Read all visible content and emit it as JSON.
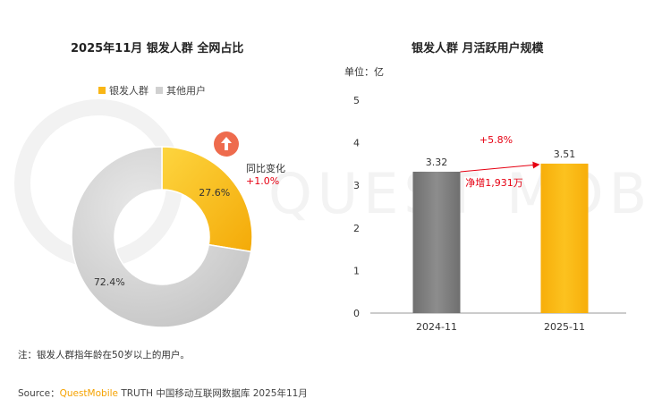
{
  "colors": {
    "primary": "#f9b616",
    "primary_light": "#fcd34a",
    "other": "#d0d0d0",
    "bar2024": "#7a7a7a",
    "accent_red": "#e60012",
    "arrow_badge": "#ee6b4d"
  },
  "left_chart": {
    "title": "2025年11月 银发人群 全网占比",
    "legend": [
      {
        "label": "银发人群",
        "color": "#f9b616"
      },
      {
        "label": "其他用户",
        "color": "#d0d0d0"
      }
    ],
    "change_label": "同比变化",
    "change_value": "+1.0%",
    "badge_icon": "up-arrow-icon"
  },
  "right_chart": {
    "title": "银发人群 月活跃用户规模",
    "unit_label": "单位：亿",
    "growth_label": "+5.8%",
    "increase_label": "净增1,931万"
  },
  "chart_data": [
    {
      "type": "pie",
      "title": "2025年11月 银发人群 全网占比",
      "categories": [
        "银发人群",
        "其他用户"
      ],
      "values": [
        27.6,
        72.4
      ],
      "labels": [
        "27.6%",
        "72.4%"
      ],
      "legend": "top"
    },
    {
      "type": "bar",
      "title": "银发人群 月活跃用户规模",
      "categories": [
        "2024-11",
        "2025-11"
      ],
      "values": [
        3.32,
        3.51
      ],
      "value_labels": [
        "3.32",
        "3.51"
      ],
      "ylabel": "单位：亿",
      "ylim": [
        0,
        5
      ],
      "yticks": [
        0,
        1,
        2,
        3,
        4,
        5
      ],
      "grid": false
    }
  ],
  "footer": {
    "note": "注：银发人群指年龄在50岁以上的用户。",
    "source_prefix": "Source：",
    "source_brand": "QuestMobile",
    "source_rest": " TRUTH 中国移动互联网数据库 2025年11月"
  }
}
